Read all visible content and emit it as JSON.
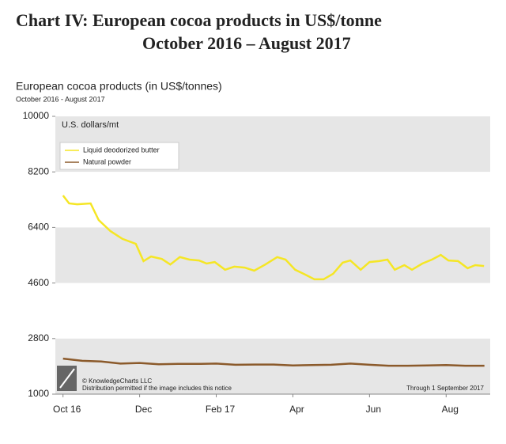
{
  "figure_title": [
    "Chart IV:  European cocoa products in US$/tonne",
    "October 2016 – August 2017"
  ],
  "chart_data": {
    "type": "line",
    "title": "European cocoa products (in US$/tonnes)",
    "subtitle": "October 2016 - August 2017",
    "y_label": "U.S. dollars/mt",
    "notice": [
      "© KnowledgeCharts LLC",
      "Distribution permitted if the image includes this notice"
    ],
    "annotation": "Through 1 September 2017",
    "xlim": [
      -0.2,
      11.15
    ],
    "xticks": [
      {
        "value": 0,
        "label": "Oct 16"
      },
      {
        "value": 2,
        "label": "Dec"
      },
      {
        "value": 4,
        "label": "Feb 17"
      },
      {
        "value": 6,
        "label": "Apr"
      },
      {
        "value": 8,
        "label": "Jun"
      },
      {
        "value": 10,
        "label": "Aug"
      }
    ],
    "ylim": [
      1000,
      10000
    ],
    "yticks": [
      1000,
      2800,
      4600,
      6400,
      8200,
      10000
    ],
    "bands": [
      "#e6e6e6",
      "#ffffff"
    ],
    "legend": "upper left",
    "series": [
      {
        "name": "Liquid deodorized butter",
        "color": "#f5e625",
        "x": [
          0,
          0.16,
          0.37,
          0.72,
          0.93,
          1.24,
          1.55,
          1.9,
          2.1,
          2.3,
          2.58,
          2.8,
          3.05,
          3.3,
          3.55,
          3.75,
          3.96,
          4.23,
          4.47,
          4.74,
          4.99,
          5.28,
          5.59,
          5.81,
          6.06,
          6.33,
          6.56,
          6.8,
          7.05,
          7.3,
          7.5,
          7.77,
          8.0,
          8.25,
          8.47,
          8.66,
          8.91,
          9.11,
          9.38,
          9.63,
          9.86,
          10.06,
          10.31,
          10.56,
          10.76,
          10.99
        ],
        "values": [
          7436,
          7180,
          7150,
          7180,
          6640,
          6280,
          6030,
          5870,
          5310,
          5460,
          5380,
          5200,
          5440,
          5360,
          5330,
          5230,
          5280,
          5030,
          5130,
          5100,
          5000,
          5200,
          5440,
          5360,
          5030,
          4870,
          4720,
          4720,
          4900,
          5260,
          5330,
          5030,
          5280,
          5310,
          5360,
          5030,
          5180,
          5030,
          5230,
          5360,
          5510,
          5330,
          5310,
          5080,
          5180,
          5150
        ]
      },
      {
        "name": "Natural powder",
        "color": "#8b5a2b",
        "x": [
          0,
          0.5,
          1,
          1.5,
          2,
          2.5,
          3,
          3.5,
          4,
          4.5,
          5,
          5.5,
          6,
          6.5,
          7,
          7.5,
          8,
          8.5,
          9,
          9.5,
          10,
          10.5,
          11
        ],
        "values": [
          2150,
          2080,
          2060,
          1990,
          2010,
          1970,
          1980,
          1980,
          1990,
          1950,
          1960,
          1960,
          1930,
          1940,
          1950,
          1990,
          1950,
          1920,
          1920,
          1930,
          1940,
          1920,
          1920
        ]
      }
    ]
  }
}
